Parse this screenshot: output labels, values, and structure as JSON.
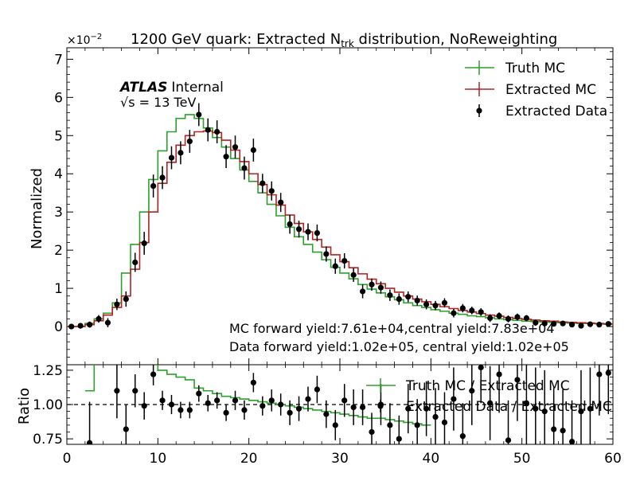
{
  "chart_data": [
    {
      "panel": "main",
      "type": "line",
      "title_main": "1200 GeV quark: Extracted N",
      "title_sub": "trk",
      "title_tail": " distribution, NoReweighting",
      "ylabel": "Normalized",
      "y_multiplier": "×10",
      "y_multiplier_exp": "−2",
      "ylim": [
        -1.0,
        7.3
      ],
      "xlim": [
        0,
        60
      ],
      "y_ticks": [
        "0",
        "1",
        "2",
        "3",
        "4",
        "5",
        "6",
        "7"
      ],
      "atlas_label": "ATLAS",
      "atlas_tag": "Internal",
      "energy_label": "√s = 13 TeV",
      "annotation_mc": "MC forward yield:7.61e+04,central yield:7.83e+04",
      "annotation_data": "Data forward yield:1.02e+05, central yield:1.02e+05",
      "legend_position": "top-right",
      "x_edges": [
        0,
        1,
        2,
        3,
        4,
        5,
        6,
        7,
        8,
        9,
        10,
        11,
        12,
        13,
        14,
        15,
        16,
        17,
        18,
        19,
        20,
        21,
        22,
        23,
        24,
        25,
        26,
        27,
        28,
        29,
        30,
        31,
        32,
        33,
        34,
        35,
        36,
        37,
        38,
        39,
        40,
        41,
        42,
        43,
        44,
        45,
        46,
        47,
        48,
        49,
        50,
        51,
        52,
        53,
        54,
        55,
        56,
        57,
        58,
        59,
        60
      ],
      "series": [
        {
          "name": "Truth MC",
          "style": "step",
          "color": "#2ca02c",
          "values": [
            0.0,
            0.0,
            0.08,
            0.2,
            0.35,
            0.62,
            1.4,
            2.15,
            3.0,
            3.85,
            4.6,
            5.1,
            5.45,
            5.55,
            5.45,
            5.2,
            4.95,
            4.7,
            4.4,
            4.1,
            3.8,
            3.5,
            3.2,
            2.9,
            2.6,
            2.35,
            2.15,
            1.95,
            1.75,
            1.55,
            1.4,
            1.25,
            1.1,
            0.98,
            0.88,
            0.78,
            0.7,
            0.62,
            0.55,
            0.5,
            0.44,
            0.4,
            0.35,
            0.32,
            0.28,
            0.26,
            0.23,
            0.2,
            0.18,
            0.16,
            0.14,
            0.13,
            0.12,
            0.11,
            0.1,
            0.09,
            0.08,
            0.08,
            0.07,
            0.06
          ]
        },
        {
          "name": "Extracted MC",
          "style": "step",
          "color": "#b22222",
          "values": [
            0.0,
            0.0,
            0.05,
            0.15,
            0.3,
            0.5,
            0.8,
            1.5,
            2.2,
            3.0,
            3.75,
            4.3,
            4.75,
            5.0,
            5.1,
            5.12,
            5.08,
            4.88,
            4.62,
            4.32,
            4.0,
            3.72,
            3.45,
            3.18,
            2.92,
            2.7,
            2.48,
            2.28,
            2.08,
            1.88,
            1.7,
            1.54,
            1.38,
            1.24,
            1.12,
            1.0,
            0.9,
            0.8,
            0.72,
            0.65,
            0.58,
            0.52,
            0.47,
            0.42,
            0.38,
            0.34,
            0.3,
            0.27,
            0.24,
            0.21,
            0.19,
            0.17,
            0.15,
            0.14,
            0.12,
            0.11,
            0.1,
            0.09,
            0.08,
            0.07
          ]
        },
        {
          "name": "Extracted Data",
          "style": "points",
          "color": "#000000",
          "x": [
            0.5,
            1.5,
            2.5,
            3.5,
            4.5,
            5.5,
            6.5,
            7.5,
            8.5,
            9.5,
            10.5,
            11.5,
            12.5,
            13.5,
            14.5,
            15.5,
            16.5,
            17.5,
            18.5,
            19.5,
            20.5,
            21.5,
            22.5,
            23.5,
            24.5,
            25.5,
            26.5,
            27.5,
            28.5,
            29.5,
            30.5,
            31.5,
            32.5,
            33.5,
            34.5,
            35.5,
            36.5,
            37.5,
            38.5,
            39.5,
            40.5,
            41.5,
            42.5,
            43.5,
            44.5,
            45.5,
            46.5,
            47.5,
            48.5,
            49.5,
            50.5,
            51.5,
            52.5,
            53.5,
            54.5,
            55.5,
            56.5,
            57.5,
            58.5,
            59.5
          ],
          "y": [
            0.0,
            0.02,
            0.05,
            0.2,
            0.1,
            0.58,
            0.72,
            1.68,
            2.18,
            3.68,
            3.9,
            4.42,
            4.55,
            4.85,
            5.55,
            5.15,
            5.1,
            4.45,
            4.7,
            4.15,
            4.62,
            3.75,
            3.55,
            3.25,
            2.68,
            2.55,
            2.48,
            2.45,
            1.9,
            1.58,
            1.72,
            1.35,
            0.92,
            1.1,
            1.02,
            0.82,
            0.72,
            0.78,
            0.68,
            0.58,
            0.55,
            0.62,
            0.35,
            0.48,
            0.42,
            0.38,
            0.22,
            0.28,
            0.2,
            0.25,
            0.22,
            0.1,
            0.08,
            0.07,
            0.08,
            0.05,
            0.02,
            0.06,
            0.05,
            0.07
          ],
          "err": [
            0.05,
            0.05,
            0.08,
            0.1,
            0.12,
            0.15,
            0.2,
            0.25,
            0.3,
            0.3,
            0.3,
            0.3,
            0.3,
            0.3,
            0.3,
            0.3,
            0.3,
            0.3,
            0.3,
            0.3,
            0.3,
            0.25,
            0.25,
            0.25,
            0.25,
            0.22,
            0.22,
            0.22,
            0.2,
            0.2,
            0.2,
            0.18,
            0.18,
            0.16,
            0.16,
            0.15,
            0.15,
            0.14,
            0.13,
            0.13,
            0.12,
            0.12,
            0.11,
            0.11,
            0.1,
            0.1,
            0.1,
            0.09,
            0.09,
            0.09,
            0.08,
            0.08,
            0.08,
            0.07,
            0.07,
            0.07,
            0.06,
            0.06,
            0.06,
            0.06
          ]
        }
      ]
    },
    {
      "panel": "ratio",
      "type": "line",
      "xlabel": "",
      "ylabel": "Ratio",
      "ylim": [
        0.71,
        1.29
      ],
      "xlim": [
        0,
        60
      ],
      "y_ticks": [
        "0.75",
        "1.00",
        "1.25"
      ],
      "x_ticks": [
        "0",
        "10",
        "20",
        "30",
        "40",
        "50",
        "60"
      ],
      "reference_line": 1.0,
      "legend_position": "top-right",
      "series": [
        {
          "name": "Truth MC / Extracted MC",
          "style": "step",
          "color": "#2ca02c",
          "x_start": 0,
          "values": [
            null,
            null,
            1.1,
            1.35,
            1.3,
            1.3,
            1.3,
            1.3,
            1.3,
            1.3,
            1.25,
            1.22,
            1.2,
            1.18,
            1.12,
            1.1,
            1.08,
            1.06,
            1.05,
            1.04,
            1.03,
            1.02,
            1.01,
            1.0,
            0.99,
            0.98,
            0.97,
            0.96,
            0.95,
            0.94,
            0.93,
            0.92,
            0.91,
            0.9,
            0.9,
            0.89,
            0.88,
            0.87,
            0.86,
            0.85
          ]
        },
        {
          "name": "Extracted Data / Extracted MC",
          "style": "points",
          "color": "#000000",
          "x": [
            2.5,
            5.5,
            6.5,
            7.5,
            8.5,
            9.5,
            10.5,
            11.5,
            12.5,
            13.5,
            14.5,
            15.5,
            16.5,
            17.5,
            18.5,
            19.5,
            20.5,
            21.5,
            22.5,
            23.5,
            24.5,
            25.5,
            26.5,
            27.5,
            28.5,
            29.5,
            30.5,
            31.5,
            32.5,
            33.5,
            34.5,
            35.5,
            36.5,
            37.5,
            38.5,
            39.5,
            40.5,
            41.5,
            42.5,
            43.5,
            44.5,
            45.5,
            46.5,
            47.5,
            48.5,
            49.5,
            50.5,
            51.5,
            52.5,
            53.5,
            54.5,
            55.5,
            56.5,
            57.5,
            58.5,
            59.5
          ],
          "y": [
            0.72,
            1.1,
            0.82,
            1.1,
            0.99,
            1.22,
            1.03,
            1.0,
            0.96,
            0.96,
            1.08,
            1.01,
            1.03,
            0.94,
            1.03,
            0.96,
            1.16,
            0.99,
            1.03,
            1.0,
            0.94,
            0.97,
            1.04,
            1.11,
            0.93,
            0.85,
            1.03,
            0.98,
            0.98,
            0.8,
            1.0,
            0.85,
            0.75,
            0.97,
            0.85,
            0.97,
            0.91,
            0.87,
            1.04,
            0.77,
            1.1,
            1.27,
            1.01,
            1.22,
            0.74,
            1.18,
            1.01,
            0.97,
            0.95,
            0.82,
            0.81,
            0.73,
            0.95,
            0.97,
            1.22,
            1.23
          ],
          "err": [
            0.3,
            0.2,
            0.18,
            0.12,
            0.1,
            0.08,
            0.07,
            0.07,
            0.06,
            0.06,
            0.06,
            0.06,
            0.06,
            0.06,
            0.07,
            0.07,
            0.07,
            0.07,
            0.08,
            0.08,
            0.09,
            0.09,
            0.09,
            0.1,
            0.1,
            0.11,
            0.12,
            0.13,
            0.13,
            0.14,
            0.15,
            0.16,
            0.17,
            0.18,
            0.19,
            0.2,
            0.21,
            0.22,
            0.23,
            0.24,
            0.25,
            0.26,
            0.27,
            0.28,
            0.29,
            0.3,
            0.3,
            0.3,
            0.3,
            0.3,
            0.3,
            0.3,
            0.3,
            0.3,
            0.3,
            0.3
          ]
        }
      ]
    }
  ]
}
